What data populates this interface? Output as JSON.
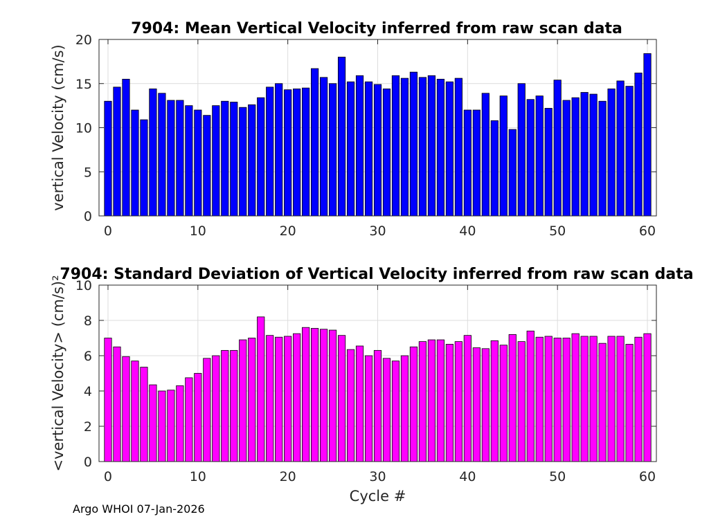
{
  "chart_data": [
    {
      "type": "bar",
      "title": "7904: Mean Vertical Velocity inferred from raw scan data",
      "xlabel": "",
      "ylabel": "vertical Velocity (cm/s)",
      "xlim": [
        -1,
        61
      ],
      "ylim": [
        0,
        20
      ],
      "xticks": [
        "0",
        "10",
        "20",
        "30",
        "40",
        "50",
        "60"
      ],
      "yticks": [
        "0",
        "5",
        "10",
        "15",
        "20"
      ],
      "grid": true,
      "color": "#0000ff",
      "x": [
        0,
        1,
        2,
        3,
        4,
        5,
        6,
        7,
        8,
        9,
        10,
        11,
        12,
        13,
        14,
        15,
        16,
        17,
        18,
        19,
        20,
        21,
        22,
        23,
        24,
        25,
        26,
        27,
        28,
        29,
        30,
        31,
        32,
        33,
        34,
        35,
        36,
        37,
        38,
        39,
        40,
        41,
        42,
        43,
        44,
        45,
        46,
        47,
        48,
        49,
        50,
        51,
        52,
        53,
        54,
        55,
        56,
        57,
        58,
        59,
        60
      ],
      "values": [
        13.0,
        14.6,
        15.5,
        12.0,
        10.9,
        14.4,
        13.9,
        13.1,
        13.1,
        12.5,
        12.0,
        11.4,
        12.5,
        13.0,
        12.9,
        12.3,
        12.6,
        13.4,
        14.6,
        15.0,
        14.3,
        14.4,
        14.5,
        16.7,
        15.7,
        15.0,
        18.0,
        15.2,
        15.9,
        15.2,
        14.9,
        14.4,
        15.9,
        15.6,
        16.3,
        15.7,
        15.9,
        15.5,
        15.2,
        15.6,
        12.0,
        12.0,
        13.9,
        10.8,
        13.6,
        9.8,
        15.0,
        13.2,
        13.6,
        12.2,
        15.4,
        13.1,
        13.4,
        14.0,
        13.8,
        13.0,
        14.4,
        15.3,
        14.7,
        16.2,
        18.4
      ]
    },
    {
      "type": "bar",
      "title": "7904: Standard Deviation of Vertical Velocity inferred from raw scan data",
      "xlabel": "Cycle #",
      "ylabel": "<vertical Velocity> (cm/s)²",
      "xlim": [
        -1,
        61
      ],
      "ylim": [
        0,
        10
      ],
      "xticks": [
        "0",
        "10",
        "20",
        "30",
        "40",
        "50",
        "60"
      ],
      "yticks": [
        "0",
        "2",
        "4",
        "6",
        "8",
        "10"
      ],
      "grid": true,
      "color": "#ff00ff",
      "x": [
        0,
        1,
        2,
        3,
        4,
        5,
        6,
        7,
        8,
        9,
        10,
        11,
        12,
        13,
        14,
        15,
        16,
        17,
        18,
        19,
        20,
        21,
        22,
        23,
        24,
        25,
        26,
        27,
        28,
        29,
        30,
        31,
        32,
        33,
        34,
        35,
        36,
        37,
        38,
        39,
        40,
        41,
        42,
        43,
        44,
        45,
        46,
        47,
        48,
        49,
        50,
        51,
        52,
        53,
        54,
        55,
        56,
        57,
        58,
        59,
        60
      ],
      "values": [
        7.0,
        6.5,
        5.95,
        5.7,
        5.35,
        4.35,
        4.0,
        4.05,
        4.3,
        4.75,
        5.0,
        5.85,
        6.0,
        6.3,
        6.3,
        6.9,
        7.0,
        8.2,
        7.15,
        7.05,
        7.1,
        7.25,
        7.6,
        7.55,
        7.5,
        7.45,
        7.15,
        6.35,
        6.55,
        6.0,
        6.3,
        5.85,
        5.7,
        6.0,
        6.5,
        6.8,
        6.9,
        6.9,
        6.65,
        6.8,
        7.15,
        6.45,
        6.4,
        6.85,
        6.6,
        7.2,
        6.8,
        7.4,
        7.05,
        7.1,
        7.0,
        7.0,
        7.25,
        7.1,
        7.1,
        6.7,
        7.1,
        7.1,
        6.65,
        7.05,
        7.25
      ]
    }
  ],
  "footer": "Argo WHOI 07-Jan-2026"
}
